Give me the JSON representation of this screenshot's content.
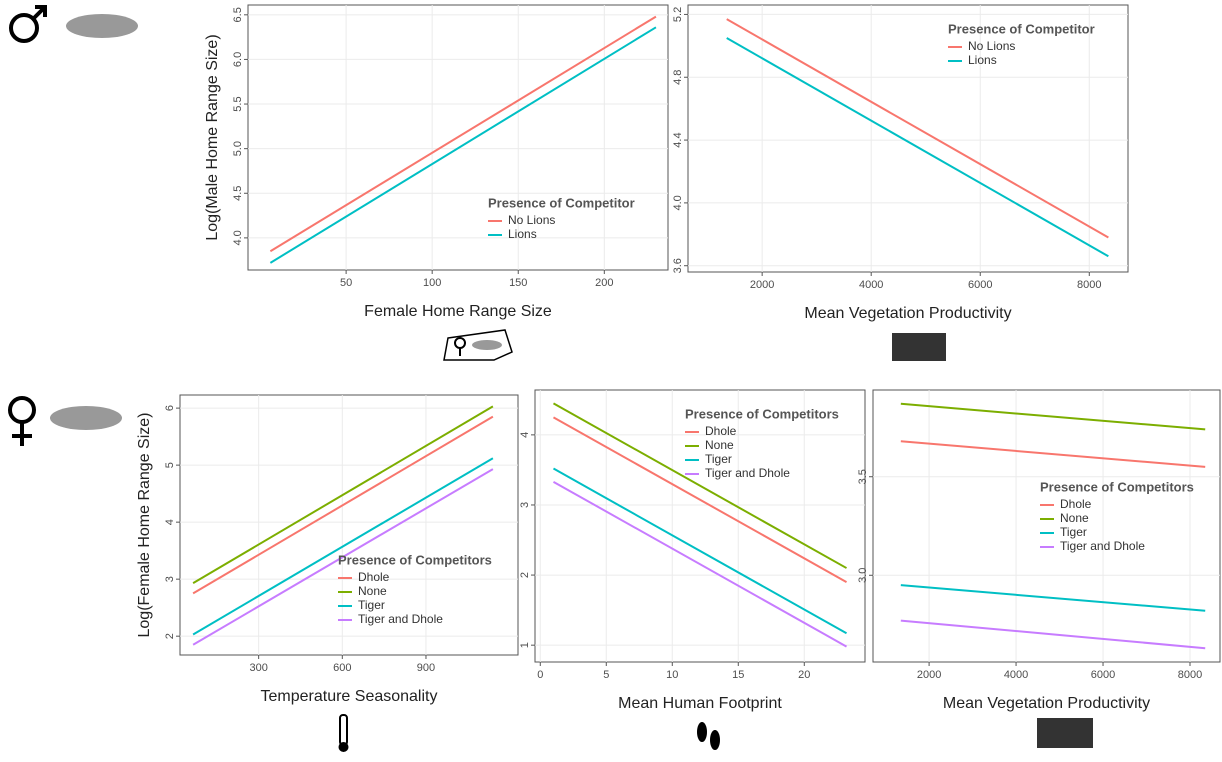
{
  "chart_data": [
    {
      "type": "line",
      "xlabel": "Female Home Range Size",
      "ylabel": "Log(Male Home Range Size)",
      "legend_title": "Presence of Competitor",
      "legend_position": "bottom-right",
      "grid": true,
      "x": [
        6,
        230
      ],
      "xlim": [
        -7,
        237
      ],
      "xticks": [
        50,
        100,
        150,
        200
      ],
      "ylim": [
        3.64,
        6.61
      ],
      "yticks": [
        {
          "value": 4,
          "label": "4.0"
        },
        4.5,
        {
          "value": 5,
          "label": "5.0"
        },
        5.5,
        {
          "value": 6,
          "label": "6.0"
        },
        6.5
      ],
      "series": [
        {
          "name": "No Lions",
          "color": "#F8766D",
          "values": [
            3.85,
            6.48
          ]
        },
        {
          "name": "Lions",
          "color": "#00BFC4",
          "values": [
            3.72,
            6.36
          ]
        }
      ]
    },
    {
      "type": "line",
      "xlabel": "Mean Vegetation Productivity",
      "legend_title": "Presence of Competitor",
      "legend_position": "top-right",
      "grid": true,
      "x": [
        1350,
        8350
      ],
      "xlim": [
        640,
        8710
      ],
      "xticks": [
        2000,
        4000,
        6000,
        8000
      ],
      "ylim": [
        3.56,
        5.26
      ],
      "yticks": [
        3.6,
        {
          "value": 4,
          "label": "4.0"
        },
        4.4,
        4.8,
        5.2
      ],
      "series": [
        {
          "name": "No Lions",
          "color": "#F8766D",
          "values": [
            5.17,
            3.78
          ]
        },
        {
          "name": "Lions",
          "color": "#00BFC4",
          "values": [
            5.05,
            3.66
          ]
        }
      ]
    },
    {
      "type": "line",
      "xlabel": "Temperature Seasonality",
      "ylabel": "Log(Female Home Range Size)",
      "legend_title": "Presence of Competitors",
      "legend_position": "bottom-right",
      "grid": true,
      "x": [
        65,
        1140
      ],
      "xlim": [
        18,
        1230
      ],
      "xticks": [
        300,
        600,
        900
      ],
      "ylim": [
        1.67,
        6.23
      ],
      "yticks": [
        2,
        3,
        4,
        5,
        6
      ],
      "series": [
        {
          "name": "Dhole",
          "color": "#F8766D",
          "values": [
            2.75,
            5.85
          ]
        },
        {
          "name": "None",
          "color": "#7CAE00",
          "values": [
            2.93,
            6.03
          ]
        },
        {
          "name": "Tiger",
          "color": "#00BFC4",
          "values": [
            2.03,
            5.12
          ]
        },
        {
          "name": "Tiger and Dhole",
          "color": "#C77CFF",
          "values": [
            1.85,
            4.93
          ]
        }
      ]
    },
    {
      "type": "line",
      "xlabel": "Mean Human Footprint",
      "legend_title": "Presence of Competitors",
      "legend_position": "top-right",
      "grid": true,
      "x": [
        1,
        23.2
      ],
      "xlim": [
        -0.4,
        24.6
      ],
      "xticks": [
        0,
        5,
        10,
        15,
        20
      ],
      "ylim": [
        0.76,
        4.64
      ],
      "yticks": [
        1,
        2,
        3,
        4
      ],
      "series": [
        {
          "name": "Dhole",
          "color": "#F8766D",
          "values": [
            4.25,
            1.9
          ]
        },
        {
          "name": "None",
          "color": "#7CAE00",
          "values": [
            4.45,
            2.1
          ]
        },
        {
          "name": "Tiger",
          "color": "#00BFC4",
          "values": [
            3.52,
            1.17
          ]
        },
        {
          "name": "Tiger and Dhole",
          "color": "#C77CFF",
          "values": [
            3.33,
            0.98
          ]
        }
      ]
    },
    {
      "type": "line",
      "xlabel": "Mean Vegetation Productivity",
      "legend_title": "Presence of Competitors",
      "legend_position": "center-right",
      "grid": true,
      "x": [
        1350,
        8350
      ],
      "xlim": [
        710,
        8690
      ],
      "xticks": [
        2000,
        4000,
        6000,
        8000
      ],
      "ylim": [
        2.56,
        3.94
      ],
      "yticks": [
        {
          "value": 3,
          "label": "3.0"
        },
        3.5
      ],
      "series": [
        {
          "name": "Dhole",
          "color": "#F8766D",
          "values": [
            3.68,
            3.55
          ]
        },
        {
          "name": "None",
          "color": "#7CAE00",
          "values": [
            3.87,
            3.74
          ]
        },
        {
          "name": "Tiger",
          "color": "#00BFC4",
          "values": [
            2.95,
            2.82
          ]
        },
        {
          "name": "Tiger and Dhole",
          "color": "#C77CFF",
          "values": [
            2.77,
            2.63
          ]
        }
      ]
    }
  ]
}
